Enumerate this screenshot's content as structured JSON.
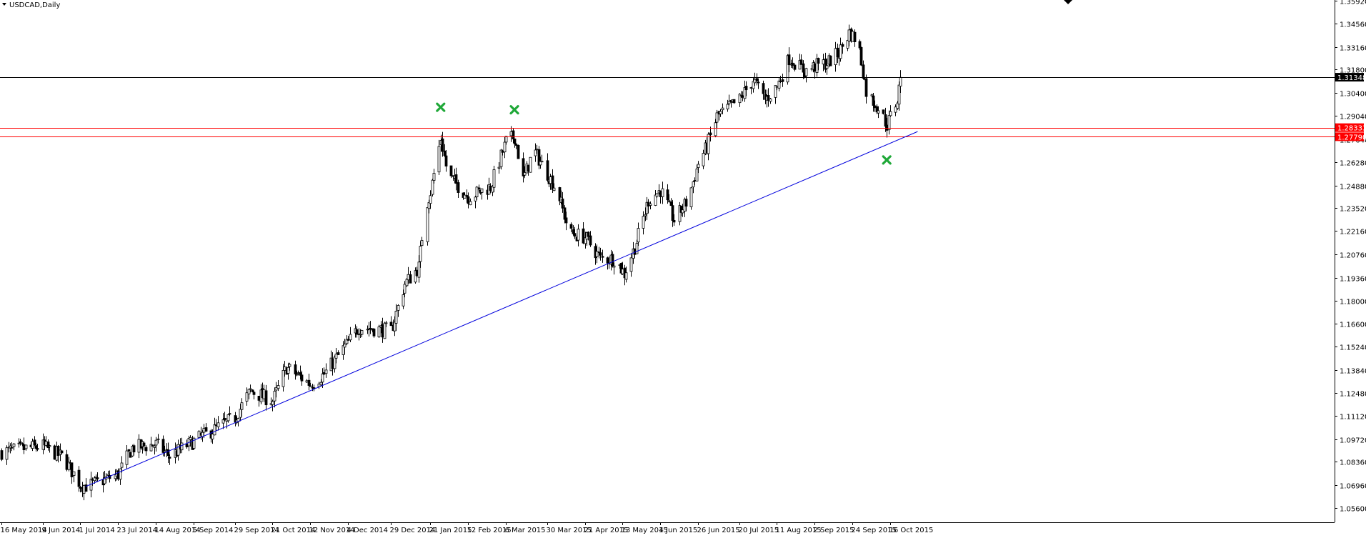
{
  "window": {
    "title": "USDCAD,Daily",
    "menu_icon": "triangle-down-icon"
  },
  "chart_data": {
    "type": "candlestick",
    "symbol": "USDCAD",
    "timeframe": "Daily",
    "ylim": [
      1.056,
      1.3592
    ],
    "y_ticks": [
      "1.35920",
      "1.34560",
      "1.33160",
      "1.31800",
      "1.30400",
      "1.29040",
      "1.27640",
      "1.26280",
      "1.24880",
      "1.23520",
      "1.22160",
      "1.20760",
      "1.19360",
      "1.18000",
      "1.16600",
      "1.15240",
      "1.13840",
      "1.12480",
      "1.11120",
      "1.09720",
      "1.08360",
      "1.06960",
      "1.05600"
    ],
    "x_ticks": [
      {
        "label": "16 May 2014",
        "day": 0
      },
      {
        "label": "9 Jun 2014",
        "day": 24
      },
      {
        "label": "1 Jul 2014",
        "day": 46
      },
      {
        "label": "23 Jul 2014",
        "day": 68
      },
      {
        "label": "14 Aug 2014",
        "day": 90
      },
      {
        "label": "5 Sep 2014",
        "day": 112
      },
      {
        "label": "29 Sep 2014",
        "day": 136
      },
      {
        "label": "21 Oct 2014",
        "day": 158
      },
      {
        "label": "12 Nov 2014",
        "day": 180
      },
      {
        "label": "4 Dec 2014",
        "day": 202
      },
      {
        "label": "29 Dec 2014",
        "day": 227
      },
      {
        "label": "21 Jan 2015",
        "day": 250
      },
      {
        "label": "12 Feb 2015",
        "day": 272
      },
      {
        "label": "6 Mar 2015",
        "day": 294
      },
      {
        "label": "30 Mar 2015",
        "day": 318
      },
      {
        "label": "21 Apr 2015",
        "day": 340
      },
      {
        "label": "13 May 2015",
        "day": 362
      },
      {
        "label": "4 Jun 2015",
        "day": 384
      },
      {
        "label": "26 Jun 2015",
        "day": 406
      },
      {
        "label": "20 Jul 2015",
        "day": 430
      },
      {
        "label": "11 Aug 2015",
        "day": 452
      },
      {
        "label": "2 Sep 2015",
        "day": 474
      },
      {
        "label": "24 Sep 2015",
        "day": 496
      },
      {
        "label": "16 Oct 2015",
        "day": 518
      }
    ],
    "price_path": [
      [
        "16 May 2014",
        1.0895
      ],
      [
        "9 Jun 2014",
        1.093
      ],
      [
        "21 Jun 2014",
        1.086
      ],
      [
        "1 Jul 2014",
        1.07
      ],
      [
        "5 Jul 2014",
        1.069
      ],
      [
        "23 Jul 2014",
        1.076
      ],
      [
        "31 Jul 2014",
        1.092
      ],
      [
        "14 Aug 2014",
        1.094
      ],
      [
        "22 Aug 2014",
        1.087
      ],
      [
        "5 Sep 2014",
        1.096
      ],
      [
        "29 Sep 2014",
        1.11
      ],
      [
        "8 Oct 2014",
        1.126
      ],
      [
        "21 Oct 2014",
        1.12
      ],
      [
        "29 Oct 2014",
        1.14
      ],
      [
        "12 Nov 2014",
        1.13
      ],
      [
        "20 Nov 2014",
        1.136
      ],
      [
        "4 Dec 2014",
        1.155
      ],
      [
        "10 Dec 2014",
        1.164
      ],
      [
        "29 Dec 2014",
        1.162
      ],
      [
        "6 Jan 2015",
        1.19
      ],
      [
        "14 Jan 2015",
        1.2
      ],
      [
        "18 Jan 2015",
        1.236
      ],
      [
        "21 Jan 2015",
        1.245
      ],
      [
        "27 Jan 2015",
        1.277
      ],
      [
        "31 Jan 2015",
        1.255
      ],
      [
        "12 Feb 2015",
        1.242
      ],
      [
        "25 Feb 2015",
        1.248
      ],
      [
        "6 Mar 2015",
        1.275
      ],
      [
        "11 Mar 2015",
        1.278
      ],
      [
        "16 Mar 2015",
        1.252
      ],
      [
        "22 Mar 2015",
        1.27
      ],
      [
        "30 Mar 2015",
        1.256
      ],
      [
        "5 Apr 2015",
        1.245
      ],
      [
        "12 Apr 2015",
        1.22
      ],
      [
        "21 Apr 2015",
        1.218
      ],
      [
        "30 Apr 2015",
        1.205
      ],
      [
        "8 May 2015",
        1.205
      ],
      [
        "14 May 2015",
        1.196
      ],
      [
        "20 May 2015",
        1.212
      ],
      [
        "28 May 2015",
        1.24
      ],
      [
        "4 Jun 2015",
        1.246
      ],
      [
        "12 Jun 2015",
        1.228
      ],
      [
        "20 Jun 2015",
        1.24
      ],
      [
        "26 Jun 2015",
        1.262
      ],
      [
        "1 Jul 2015",
        1.272
      ],
      [
        "7 Jul 2015",
        1.29
      ],
      [
        "20 Jul 2015",
        1.3
      ],
      [
        "28 Jul 2015",
        1.312
      ],
      [
        "4 Aug 2015",
        1.3
      ],
      [
        "11 Aug 2015",
        1.308
      ],
      [
        "18 Aug 2015",
        1.325
      ],
      [
        "27 Aug 2015",
        1.317
      ],
      [
        "2 Sep 2015",
        1.32
      ],
      [
        "9 Sep 2015",
        1.322
      ],
      [
        "16 Sep 2015",
        1.328
      ],
      [
        "22 Sep 2015",
        1.34
      ],
      [
        "27 Sep 2015",
        1.335
      ],
      [
        "2 Oct 2015",
        1.305
      ],
      [
        "9 Oct 2015",
        1.295
      ],
      [
        "14 Oct 2015",
        1.285
      ],
      [
        "20 Oct 2015",
        1.3
      ],
      [
        "22 Oct 2015",
        1.3134
      ]
    ],
    "horizontal_lines": [
      {
        "value": 1.31348,
        "label": "1.31348",
        "color": "#000000"
      },
      {
        "value": 1.28333,
        "label": "1.28333",
        "color": "#ff0000"
      },
      {
        "value": 1.2779,
        "label": "1.27790",
        "color": "#ff0000"
      }
    ],
    "trend_line": {
      "color": "#0000dd",
      "start": {
        "date": "4 Jul 2014",
        "price": 1.0688
      },
      "end": {
        "date": "1 Nov 2015",
        "price": 1.281
      }
    },
    "markers": [
      {
        "date": "27 Jan 2015",
        "price": 1.2955,
        "icon": "green-x-icon",
        "color": "#1fa838"
      },
      {
        "date": "11 Mar 2015",
        "price": 1.294,
        "icon": "green-x-icon",
        "color": "#1fa838"
      },
      {
        "date": "14 Oct 2015",
        "price": 1.264,
        "icon": "green-x-icon",
        "color": "#1fa838"
      }
    ],
    "top_marker_icon": "black-arrow-down-icon",
    "candle_colors": {
      "up": "#ffffff",
      "down": "#000000",
      "wick": "#000000"
    },
    "last_price_tag_color": "#000000",
    "grid": false,
    "legend": "none"
  }
}
